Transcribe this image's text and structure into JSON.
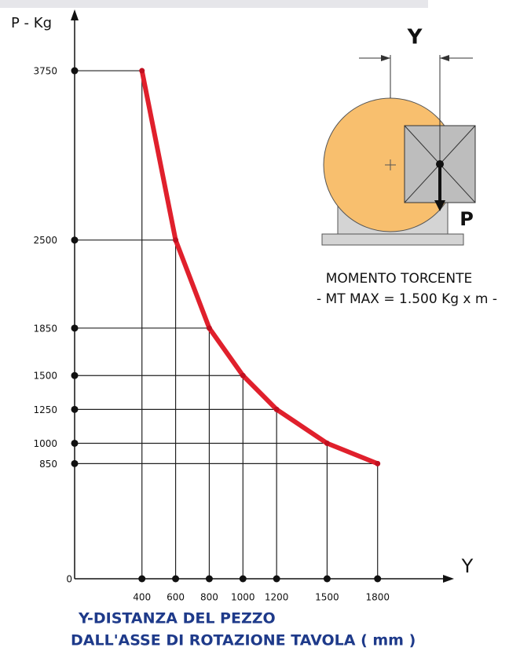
{
  "chart_data": {
    "type": "line",
    "y_label": "P - Kg",
    "x_label": "Y",
    "title_lines": [
      "Y-DISTANZA DEL PEZZO",
      "DALL'ASSE DI ROTAZIONE TAVOLA ( mm )"
    ],
    "x": [
      400,
      600,
      800,
      1000,
      1200,
      1500,
      1800
    ],
    "series": [
      {
        "name": "P",
        "color": "#e0202c",
        "values": [
          3750,
          2500,
          1850,
          1500,
          1250,
          1000,
          850
        ]
      }
    ],
    "xlim": [
      0,
      2240
    ],
    "ylim": [
      0,
      4185
    ],
    "xticks": [
      400,
      600,
      800,
      1000,
      1200,
      1500,
      1800
    ],
    "yticks": [
      0,
      850,
      1000,
      1250,
      1500,
      1850,
      2500,
      3750
    ],
    "annotations": {
      "dim": "Y",
      "load": "P",
      "caption": "MOMENTO TORCENTE",
      "max": "- MT MAX = 1.500 Kg x m -"
    }
  }
}
